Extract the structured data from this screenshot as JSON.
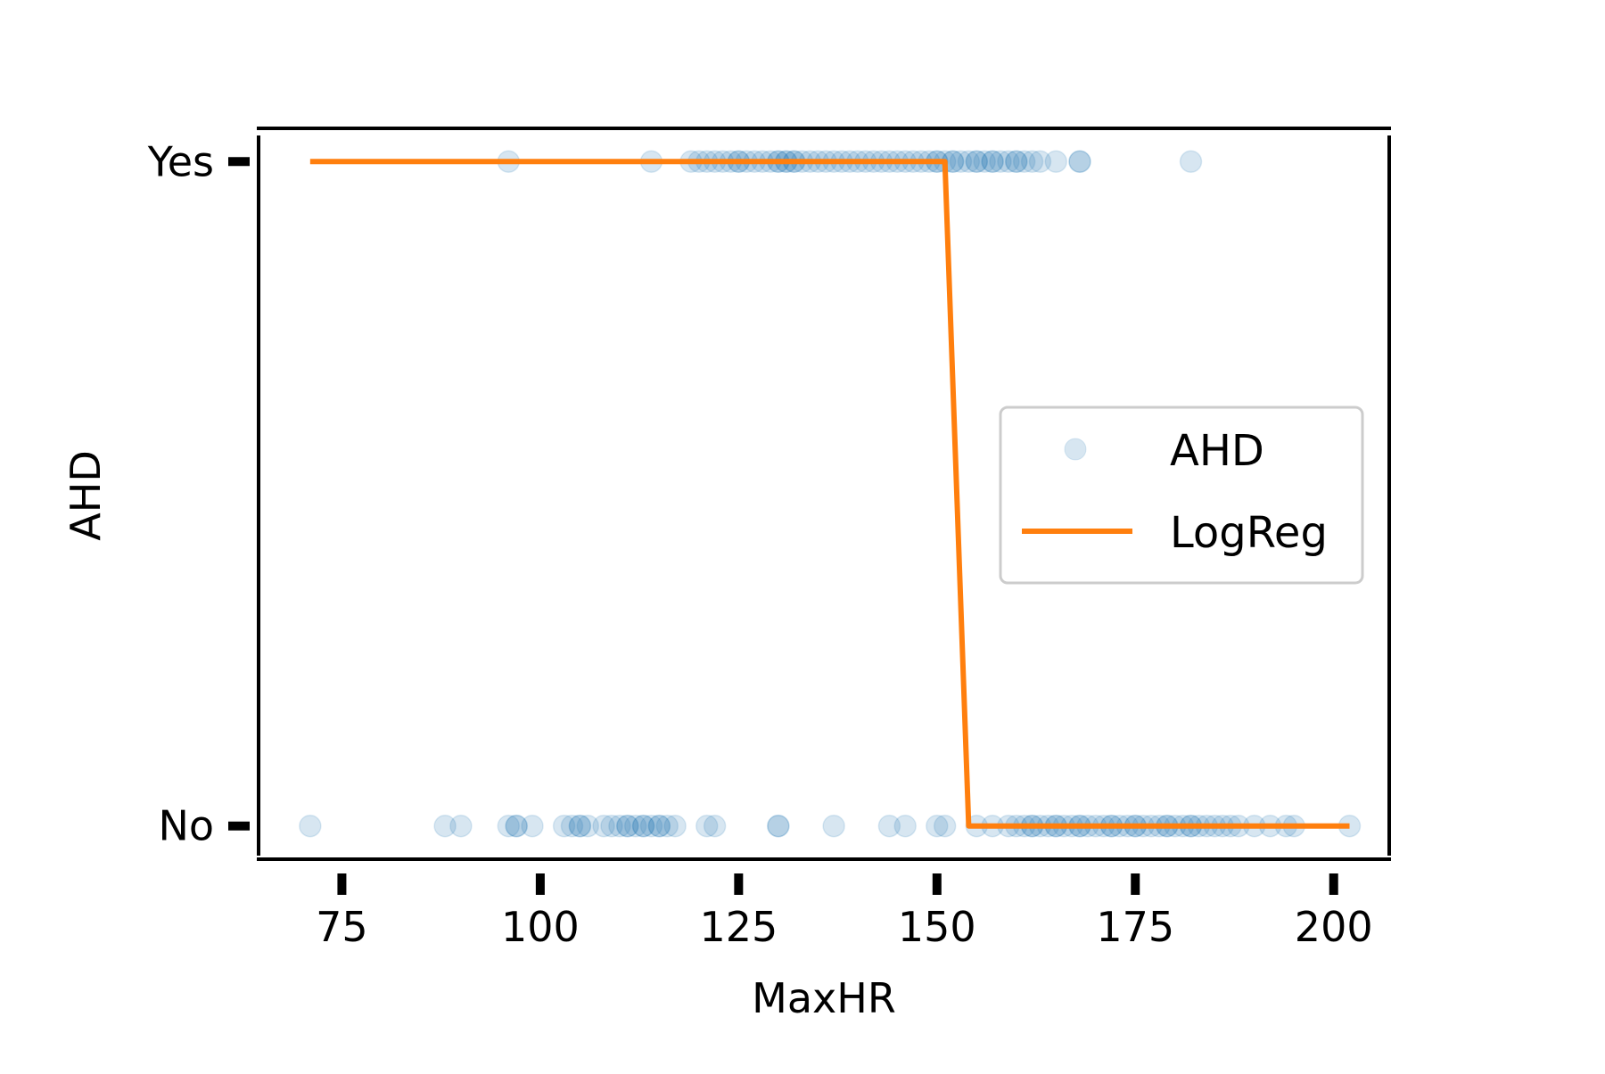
{
  "chart_data": {
    "type": "scatter",
    "xlabel": "MaxHR",
    "ylabel": "AHD",
    "xlim": [
      64.5,
      207
    ],
    "ylim": [
      -0.05,
      1.05
    ],
    "xticks": [
      75,
      100,
      125,
      150,
      175,
      200
    ],
    "xtick_labels": [
      "75",
      "100",
      "125",
      "150",
      "175",
      "200"
    ],
    "yticks": [
      0,
      1
    ],
    "ytick_labels": [
      "No",
      "Yes"
    ],
    "grid": false,
    "legend_position": "center-right",
    "series": [
      {
        "name": "AHD",
        "kind": "scatter",
        "color": "#1f77b4",
        "opacity": 0.18,
        "points_yes": [
          96,
          114,
          119,
          120,
          121,
          122,
          123,
          124,
          125,
          125,
          126,
          127,
          128,
          129,
          130,
          130,
          131,
          131,
          132,
          132,
          133,
          134,
          135,
          136,
          137,
          138,
          139,
          140,
          141,
          142,
          143,
          144,
          145,
          146,
          147,
          148,
          149,
          150,
          150,
          151,
          152,
          152,
          153,
          154,
          155,
          155,
          156,
          157,
          157,
          158,
          159,
          160,
          160,
          161,
          162,
          163,
          165,
          168,
          168,
          182
        ],
        "points_no": [
          71,
          88,
          90,
          96,
          97,
          97,
          99,
          103,
          104,
          105,
          105,
          106,
          108,
          109,
          110,
          111,
          111,
          112,
          113,
          113,
          114,
          115,
          115,
          116,
          117,
          121,
          122,
          130,
          130,
          137,
          144,
          146,
          150,
          151,
          155,
          157,
          159,
          160,
          161,
          162,
          162,
          163,
          164,
          165,
          165,
          166,
          167,
          168,
          168,
          169,
          170,
          171,
          172,
          172,
          173,
          174,
          175,
          175,
          176,
          177,
          178,
          179,
          179,
          180,
          181,
          182,
          182,
          183,
          184,
          185,
          186,
          187,
          188,
          190,
          192,
          194,
          195,
          202
        ]
      },
      {
        "name": "LogReg",
        "kind": "line",
        "color": "#ff7f0e",
        "x": [
          71,
          151,
          154,
          202
        ],
        "y": [
          1,
          1,
          0,
          0
        ]
      }
    ]
  }
}
